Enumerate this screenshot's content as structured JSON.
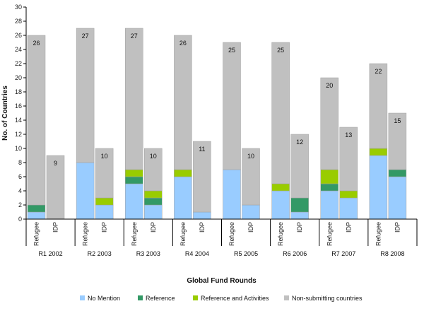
{
  "chart_data": {
    "type": "bar",
    "stacked": true,
    "title": "",
    "xlabel": "Global Fund Rounds",
    "ylabel": "No. of Countries",
    "ylim": [
      0,
      30
    ],
    "ytick_step": 2,
    "grid": false,
    "legend_position": "bottom",
    "groups": [
      {
        "label": "R1 2002",
        "bars": [
          {
            "category": "Refugee",
            "total": 26,
            "values": [
              1,
              1,
              0,
              24
            ]
          },
          {
            "category": "IDP",
            "total": 9,
            "values": [
              0,
              0,
              0,
              9
            ]
          }
        ]
      },
      {
        "label": "R2 2003",
        "bars": [
          {
            "category": "Refugee",
            "total": 27,
            "values": [
              8,
              0,
              0,
              19
            ]
          },
          {
            "category": "IDP",
            "total": 10,
            "values": [
              2,
              0,
              1,
              7
            ]
          }
        ]
      },
      {
        "label": "R3 2003",
        "bars": [
          {
            "category": "Refugee",
            "total": 27,
            "values": [
              5,
              1,
              1,
              20
            ]
          },
          {
            "category": "IDP",
            "total": 10,
            "values": [
              2,
              1,
              1,
              6
            ]
          }
        ]
      },
      {
        "label": "R4 2004",
        "bars": [
          {
            "category": "Refugee",
            "total": 26,
            "values": [
              6,
              0,
              1,
              19
            ]
          },
          {
            "category": "IDP",
            "total": 11,
            "values": [
              1,
              0,
              0,
              10
            ]
          }
        ]
      },
      {
        "label": "R5 2005",
        "bars": [
          {
            "category": "Refugee",
            "total": 25,
            "values": [
              7,
              0,
              0,
              18
            ]
          },
          {
            "category": "IDP",
            "total": 10,
            "values": [
              2,
              0,
              0,
              8
            ]
          }
        ]
      },
      {
        "label": "R6 2006",
        "bars": [
          {
            "category": "Refugee",
            "total": 25,
            "values": [
              4,
              0,
              1,
              20
            ]
          },
          {
            "category": "IDP",
            "total": 12,
            "values": [
              1,
              2,
              0,
              9
            ]
          }
        ]
      },
      {
        "label": "R7 2007",
        "bars": [
          {
            "category": "Refugee",
            "total": 20,
            "values": [
              4,
              1,
              2,
              13
            ]
          },
          {
            "category": "IDP",
            "total": 13,
            "values": [
              3,
              0,
              1,
              9
            ]
          }
        ]
      },
      {
        "label": "R8 2008",
        "bars": [
          {
            "category": "Refugee",
            "total": 22,
            "values": [
              9,
              0,
              1,
              12
            ]
          },
          {
            "category": "IDP",
            "total": 15,
            "values": [
              6,
              1,
              0,
              8
            ]
          }
        ]
      }
    ],
    "series": [
      {
        "name": "No Mention",
        "color": "#99ccff"
      },
      {
        "name": "Reference",
        "color": "#339966"
      },
      {
        "name": "Reference and Activities",
        "color": "#99cc00"
      },
      {
        "name": "Non-submitting countries",
        "color": "#c0c0c0"
      }
    ]
  }
}
